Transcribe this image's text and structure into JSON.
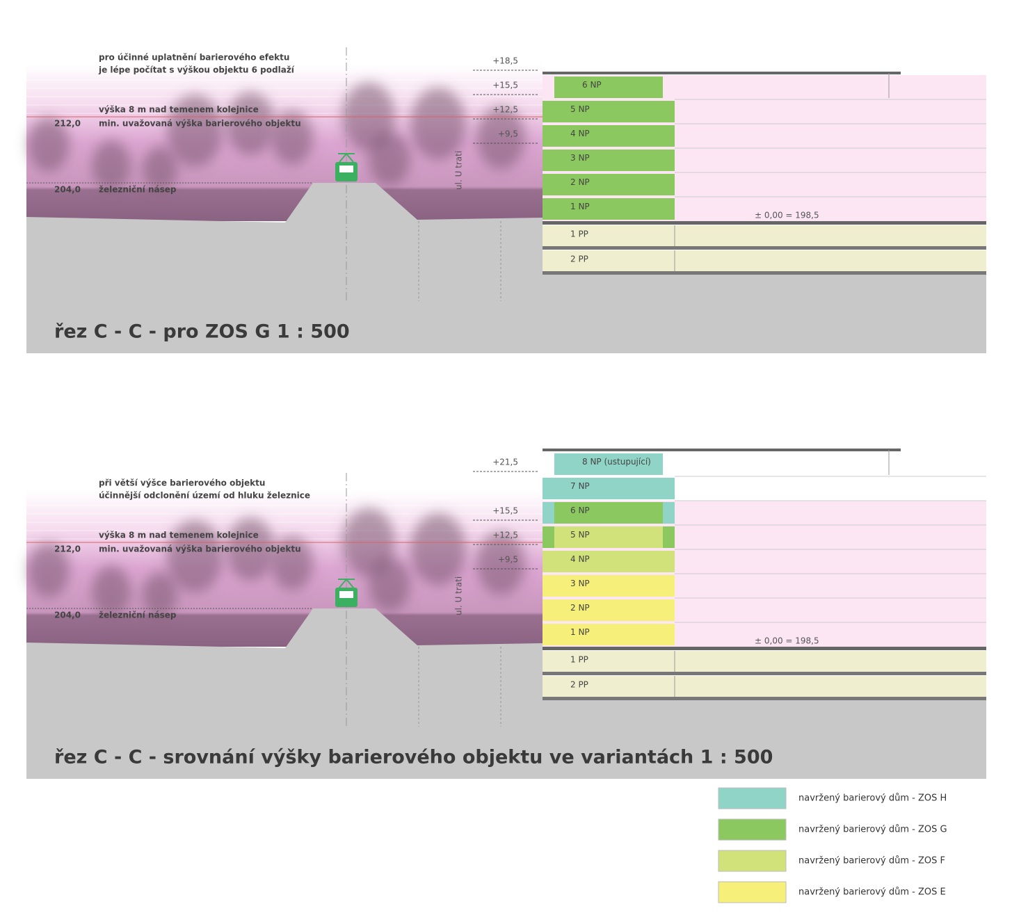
{
  "panels": [
    {
      "title": "řez C - C - pro ZOS G   1 : 500",
      "note": [
        "pro účinné uplatnění barierového efektu",
        "je lépe počítat s výškou objektu 6 podlaží"
      ],
      "rail_note": "výška 8 m nad temenem kolejnice",
      "elevation_high": "212,0",
      "min_note": "min. uvažovaná výška barierového objektu",
      "elevation_low": "204,0",
      "embankment": "železniční násep",
      "street": "ul. U trati",
      "levels": [
        "+18,5",
        "+15,5",
        "+12,5",
        "+9,5"
      ],
      "zero_level": "± 0,00 = 198,5",
      "floors": [
        {
          "label": "6 NP",
          "color": "#8cc860"
        },
        {
          "label": "5 NP",
          "color": "#8cc860"
        },
        {
          "label": "4 NP",
          "color": "#8cc860"
        },
        {
          "label": "3 NP",
          "color": "#8cc860"
        },
        {
          "label": "2 NP",
          "color": "#8cc860"
        },
        {
          "label": "1 NP",
          "color": "#8cc860"
        }
      ],
      "basements": [
        {
          "label": "1 PP",
          "color": "#efefcf"
        },
        {
          "label": "2 PP",
          "color": "#efefcf"
        }
      ]
    },
    {
      "title": "řez C - C - srovnání výšky barierového objektu ve variantách   1 : 500",
      "note": [
        "při větší výšce barierového objektu",
        "účinnější odclonění území od hluku železnice"
      ],
      "rail_note": "výška 8 m nad temenem kolejnice",
      "elevation_high": "212,0",
      "min_note": "min. uvažovaná výška barierového objektu",
      "elevation_low": "204,0",
      "embankment": "železniční násep",
      "street": "ul. U trati",
      "levels": [
        "+21,5",
        "+15,5",
        "+12,5",
        "+9,5"
      ],
      "zero_level": "± 0,00 = 198,5",
      "floors": [
        {
          "label": "8 NP (ustupující)",
          "color": "#90d4c8"
        },
        {
          "label": "7 NP",
          "color": "#90d4c8"
        },
        {
          "label": "6 NP",
          "color": "#8cc860",
          "edge": "#90d4c8"
        },
        {
          "label": "5 NP",
          "color": "#d2e27a",
          "edge": "#8cc860"
        },
        {
          "label": "4 NP",
          "color": "#d2e27a"
        },
        {
          "label": "3 NP",
          "color": "#f6f07a"
        },
        {
          "label": "2 NP",
          "color": "#f6f07a"
        },
        {
          "label": "1 NP",
          "color": "#f6f07a"
        }
      ],
      "basements": [
        {
          "label": "1 PP",
          "color": "#efefcf"
        },
        {
          "label": "2 PP",
          "color": "#efefcf"
        }
      ]
    }
  ],
  "legend": [
    {
      "label": "navržený barierový dům - ZOS H",
      "color": "#90d4c8"
    },
    {
      "label": "navržený barierový dům - ZOS G",
      "color": "#8cc860"
    },
    {
      "label": "navržený barierový dům - ZOS F",
      "color": "#d2e27a"
    },
    {
      "label": "navržený barierový dům - ZOS E",
      "color": "#f6f07a"
    }
  ]
}
